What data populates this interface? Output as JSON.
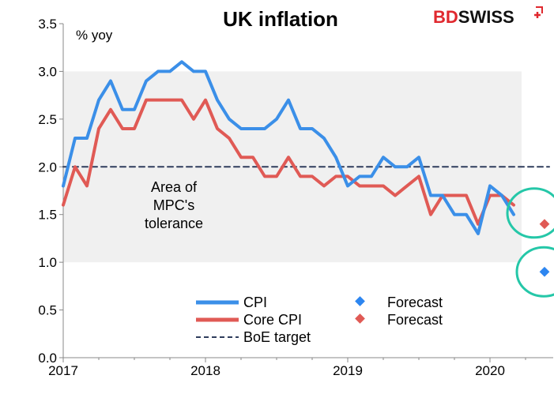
{
  "brand": {
    "part1": "BD",
    "part2": "SWISS"
  },
  "chart_data": {
    "type": "line",
    "title": "UK inflation",
    "unit_label": "% yoy",
    "ylim": [
      0.0,
      3.5
    ],
    "y_ticks": [
      "0.0",
      "0.5",
      "1.0",
      "1.5",
      "2.0",
      "2.5",
      "3.0",
      "3.5"
    ],
    "x_ticks": [
      "2017",
      "2018",
      "2019",
      "2020"
    ],
    "x_tick_values": [
      0,
      12,
      24,
      36
    ],
    "xlim": [
      0,
      42
    ],
    "tolerance_band": {
      "low": 1.0,
      "high": 3.0,
      "label": [
        "Area of",
        "MPC's",
        "tolerance"
      ]
    },
    "series": [
      {
        "name": "CPI",
        "color": "#3b8fe8",
        "x": [
          0,
          1,
          2,
          3,
          4,
          5,
          6,
          7,
          8,
          9,
          10,
          11,
          12,
          13,
          14,
          15,
          16,
          17,
          18,
          19,
          20,
          21,
          22,
          23,
          24,
          25,
          26,
          27,
          28,
          29,
          30,
          31,
          32,
          33,
          34,
          35,
          36,
          37,
          38
        ],
        "values": [
          1.8,
          2.3,
          2.3,
          2.7,
          2.9,
          2.6,
          2.6,
          2.9,
          3.0,
          3.0,
          3.1,
          3.0,
          3.0,
          2.7,
          2.5,
          2.4,
          2.4,
          2.4,
          2.5,
          2.7,
          2.4,
          2.4,
          2.3,
          2.1,
          1.8,
          1.9,
          1.9,
          2.1,
          2.0,
          2.0,
          2.1,
          1.7,
          1.7,
          1.5,
          1.5,
          1.3,
          1.8,
          1.7,
          1.5
        ]
      },
      {
        "name": "Core CPI",
        "color": "#e05a55",
        "x": [
          0,
          1,
          2,
          3,
          4,
          5,
          6,
          7,
          8,
          9,
          10,
          11,
          12,
          13,
          14,
          15,
          16,
          17,
          18,
          19,
          20,
          21,
          22,
          23,
          24,
          25,
          26,
          27,
          28,
          29,
          30,
          31,
          32,
          33,
          34,
          35,
          36,
          37,
          38
        ],
        "values": [
          1.6,
          2.0,
          1.8,
          2.4,
          2.6,
          2.4,
          2.4,
          2.7,
          2.7,
          2.7,
          2.7,
          2.5,
          2.7,
          2.4,
          2.3,
          2.1,
          2.1,
          1.9,
          1.9,
          2.1,
          1.9,
          1.9,
          1.8,
          1.9,
          1.9,
          1.8,
          1.8,
          1.8,
          1.7,
          1.8,
          1.9,
          1.5,
          1.7,
          1.7,
          1.7,
          1.4,
          1.7,
          1.7,
          1.6
        ]
      },
      {
        "name": "BoE target",
        "color": "#2f3d5c",
        "dashed": true,
        "x": [
          0,
          41
        ],
        "values": [
          2.0,
          2.0
        ]
      }
    ],
    "forecasts": [
      {
        "name": "Forecast",
        "series": "CPI",
        "color": "#2d86f0",
        "x": 41,
        "value": 0.9
      },
      {
        "name": "Forecast",
        "series": "Core CPI",
        "color": "#e05a55",
        "x": 41,
        "value": 1.4
      }
    ],
    "highlight_color": "#25c7a8",
    "legend_left": [
      "CPI",
      "Core CPI",
      "BoE target"
    ],
    "legend_right": [
      "Forecast",
      "Forecast"
    ]
  }
}
